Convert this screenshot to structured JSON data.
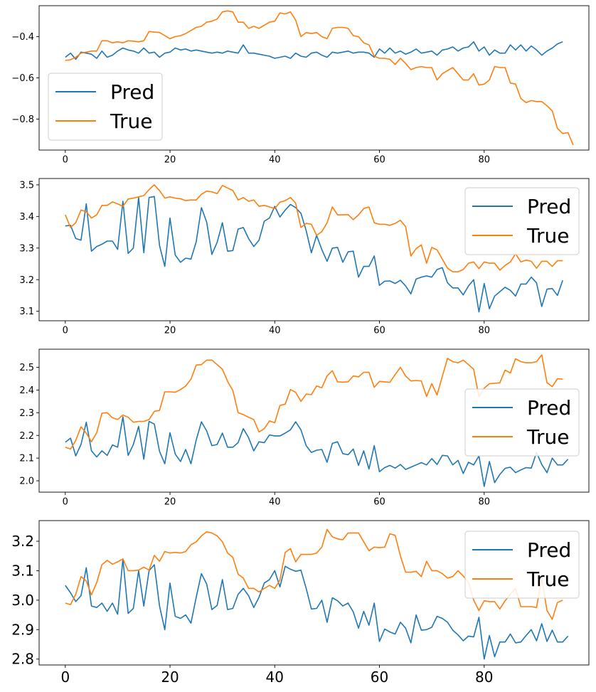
{
  "colors": {
    "pred": "#1f77b4",
    "true": "#ff7f0e",
    "axis": "#000000",
    "legend_border": "#cccccc"
  },
  "chart_data": [
    {
      "type": "line",
      "title": "",
      "xlabel": "",
      "ylabel": "",
      "xlim": [
        -5,
        100
      ],
      "ylim": [
        -0.95,
        -0.25
      ],
      "xticks": [
        0,
        20,
        40,
        60,
        80
      ],
      "xtick_labels": [
        "0",
        "20",
        "40",
        "60",
        "80"
      ],
      "yticks": [
        -0.8,
        -0.6,
        -0.4
      ],
      "ytick_labels": [
        "−0.8",
        "−0.6",
        "−0.4"
      ],
      "legend_position": "bottom-left",
      "series": [
        {
          "name": "Pred",
          "key": "pred",
          "values": [
            -0.5,
            -0.48,
            -0.51,
            -0.475,
            -0.48,
            -0.485,
            -0.505,
            -0.47,
            -0.5,
            -0.49,
            -0.47,
            -0.455,
            -0.465,
            -0.47,
            -0.48,
            -0.455,
            -0.48,
            -0.475,
            -0.5,
            -0.48,
            -0.475,
            -0.455,
            -0.465,
            -0.46,
            -0.47,
            -0.465,
            -0.47,
            -0.475,
            -0.48,
            -0.475,
            -0.48,
            -0.47,
            -0.475,
            -0.48,
            -0.44,
            -0.48,
            -0.48,
            -0.485,
            -0.49,
            -0.495,
            -0.505,
            -0.5,
            -0.495,
            -0.505,
            -0.48,
            -0.495,
            -0.5,
            -0.48,
            -0.475,
            -0.49,
            -0.5,
            -0.475,
            -0.48,
            -0.475,
            -0.47,
            -0.48,
            -0.475,
            -0.475,
            -0.48,
            -0.5,
            -0.46,
            -0.48,
            -0.455,
            -0.48,
            -0.47,
            -0.485,
            -0.475,
            -0.46,
            -0.48,
            -0.475,
            -0.47,
            -0.49,
            -0.465,
            -0.46,
            -0.45,
            -0.47,
            -0.455,
            -0.45,
            -0.425,
            -0.47,
            -0.45,
            -0.49,
            -0.465,
            -0.48,
            -0.48,
            -0.44,
            -0.465,
            -0.44,
            -0.47,
            -0.445,
            -0.465,
            -0.49,
            -0.47,
            -0.455,
            -0.435,
            -0.425
          ]
        },
        {
          "name": "True",
          "key": "true",
          "values": [
            -0.515,
            -0.512,
            -0.5,
            -0.48,
            -0.475,
            -0.47,
            -0.47,
            -0.42,
            -0.42,
            -0.43,
            -0.425,
            -0.43,
            -0.42,
            -0.422,
            -0.425,
            -0.42,
            -0.375,
            -0.378,
            -0.38,
            -0.395,
            -0.41,
            -0.4,
            -0.395,
            -0.385,
            -0.37,
            -0.355,
            -0.35,
            -0.33,
            -0.325,
            -0.315,
            -0.28,
            -0.275,
            -0.28,
            -0.33,
            -0.33,
            -0.36,
            -0.35,
            -0.36,
            -0.345,
            -0.33,
            -0.325,
            -0.285,
            -0.29,
            -0.28,
            -0.32,
            -0.4,
            -0.38,
            -0.385,
            -0.38,
            -0.4,
            -0.41,
            -0.36,
            -0.355,
            -0.355,
            -0.36,
            -0.395,
            -0.4,
            -0.43,
            -0.44,
            -0.495,
            -0.505,
            -0.505,
            -0.51,
            -0.535,
            -0.505,
            -0.53,
            -0.56,
            -0.55,
            -0.545,
            -0.55,
            -0.55,
            -0.61,
            -0.58,
            -0.565,
            -0.55,
            -0.58,
            -0.61,
            -0.61,
            -0.58,
            -0.635,
            -0.63,
            -0.61,
            -0.545,
            -0.55,
            -0.55,
            -0.625,
            -0.63,
            -0.7,
            -0.72,
            -0.71,
            -0.715,
            -0.715,
            -0.735,
            -0.76,
            -0.845,
            -0.87,
            -0.865,
            -0.925
          ]
        }
      ]
    },
    {
      "type": "line",
      "title": "",
      "xlabel": "",
      "ylabel": "",
      "xlim": [
        -5,
        100
      ],
      "ylim": [
        3.07,
        3.52
      ],
      "xticks": [
        0,
        20,
        40,
        60,
        80
      ],
      "xtick_labels": [
        "0",
        "20",
        "40",
        "60",
        "80"
      ],
      "yticks": [
        3.1,
        3.2,
        3.3,
        3.4,
        3.5
      ],
      "ytick_labels": [
        "3.1",
        "3.2",
        "3.3",
        "3.4",
        "3.5"
      ],
      "legend_position": "top-right",
      "series": [
        {
          "name": "Pred",
          "key": "pred",
          "values": [
            3.37,
            3.372,
            3.33,
            3.325,
            3.44,
            3.29,
            3.305,
            3.312,
            3.322,
            3.322,
            3.296,
            3.448,
            3.283,
            3.3,
            3.46,
            3.285,
            3.46,
            3.463,
            3.308,
            3.242,
            3.395,
            3.278,
            3.255,
            3.268,
            3.265,
            3.32,
            3.428,
            3.382,
            3.28,
            3.318,
            3.38,
            3.29,
            3.292,
            3.36,
            3.365,
            3.33,
            3.305,
            3.325,
            3.385,
            3.395,
            3.432,
            3.398,
            3.42,
            3.438,
            3.428,
            3.41,
            3.355,
            3.285,
            3.34,
            3.295,
            3.258,
            3.3,
            3.302,
            3.255,
            3.288,
            3.29,
            3.208,
            3.242,
            3.242,
            3.275,
            3.182,
            3.195,
            3.196,
            3.188,
            3.198,
            3.18,
            3.155,
            3.202,
            3.208,
            3.212,
            3.208,
            3.232,
            3.238,
            3.19,
            3.174,
            3.174,
            3.152,
            3.18,
            3.2,
            3.098,
            3.188,
            3.108,
            3.148,
            3.162,
            3.176,
            3.166,
            3.148,
            3.186,
            3.186,
            3.208,
            3.19,
            3.115,
            3.17,
            3.172,
            3.15,
            3.198
          ]
        },
        {
          "name": "True",
          "key": "true",
          "values": [
            3.405,
            3.365,
            3.38,
            3.42,
            3.415,
            3.395,
            3.405,
            3.435,
            3.435,
            3.446,
            3.44,
            3.432,
            3.455,
            3.458,
            3.462,
            3.466,
            3.485,
            3.5,
            3.482,
            3.458,
            3.462,
            3.458,
            3.456,
            3.45,
            3.452,
            3.452,
            3.47,
            3.48,
            3.478,
            3.472,
            3.498,
            3.49,
            3.482,
            3.452,
            3.46,
            3.448,
            3.452,
            3.432,
            3.435,
            3.43,
            3.425,
            3.445,
            3.45,
            3.46,
            3.442,
            3.365,
            3.378,
            3.375,
            3.34,
            3.352,
            3.38,
            3.43,
            3.405,
            3.405,
            3.406,
            3.39,
            3.405,
            3.425,
            3.43,
            3.38,
            3.375,
            3.375,
            3.372,
            3.378,
            3.388,
            3.368,
            3.275,
            3.298,
            3.31,
            3.252,
            3.302,
            3.294,
            3.265,
            3.236,
            3.225,
            3.225,
            3.232,
            3.252,
            3.256,
            3.235,
            3.256,
            3.252,
            3.252,
            3.23,
            3.245,
            3.256,
            3.282,
            3.256,
            3.262,
            3.258,
            3.236,
            3.258,
            3.258,
            3.242,
            3.26,
            3.26
          ]
        }
      ]
    },
    {
      "type": "line",
      "title": "",
      "xlabel": "",
      "ylabel": "",
      "xlim": [
        -5,
        100
      ],
      "ylim": [
        1.95,
        2.58
      ],
      "xticks": [
        0,
        20,
        40,
        60,
        80
      ],
      "xtick_labels": [
        "0",
        "20",
        "40",
        "60",
        "80"
      ],
      "yticks": [
        2.0,
        2.1,
        2.2,
        2.3,
        2.4,
        2.5
      ],
      "ytick_labels": [
        "2.0",
        "2.1",
        "2.2",
        "2.3",
        "2.4",
        "2.5"
      ],
      "legend_position": "center-right",
      "series": [
        {
          "name": "Pred",
          "key": "pred",
          "values": [
            2.17,
            2.188,
            2.11,
            2.16,
            2.258,
            2.132,
            2.105,
            2.132,
            2.112,
            2.158,
            2.148,
            2.282,
            2.112,
            2.16,
            2.24,
            2.095,
            2.262,
            2.25,
            2.13,
            2.075,
            2.212,
            2.118,
            2.085,
            2.138,
            2.075,
            2.18,
            2.26,
            2.22,
            2.155,
            2.16,
            2.21,
            2.148,
            2.148,
            2.168,
            2.23,
            2.19,
            2.132,
            2.172,
            2.168,
            2.202,
            2.198,
            2.198,
            2.21,
            2.225,
            2.26,
            2.225,
            2.155,
            2.125,
            2.135,
            2.138,
            2.082,
            2.165,
            2.172,
            2.12,
            2.115,
            2.14,
            2.068,
            2.132,
            2.052,
            2.155,
            2.04,
            2.058,
            2.068,
            2.056,
            2.072,
            2.05,
            2.06,
            2.07,
            2.08,
            2.07,
            2.098,
            2.072,
            2.112,
            2.11,
            2.07,
            2.09,
            2.032,
            2.082,
            2.07,
            2.11,
            1.975,
            2.085,
            1.992,
            2.028,
            2.055,
            2.06,
            2.036,
            2.048,
            2.058,
            2.056,
            2.125,
            2.072,
            2.036,
            2.1,
            2.07,
            2.07,
            2.095
          ]
        },
        {
          "name": "True",
          "key": "true",
          "values": [
            2.148,
            2.14,
            2.178,
            2.238,
            2.21,
            2.172,
            2.212,
            2.298,
            2.3,
            2.278,
            2.27,
            2.29,
            2.28,
            2.258,
            2.262,
            2.262,
            2.27,
            2.306,
            2.31,
            2.392,
            2.392,
            2.39,
            2.402,
            2.418,
            2.448,
            2.51,
            2.512,
            2.532,
            2.532,
            2.512,
            2.492,
            2.438,
            2.398,
            2.3,
            2.292,
            2.28,
            2.27,
            2.215,
            2.23,
            2.264,
            2.256,
            2.332,
            2.338,
            2.402,
            2.39,
            2.35,
            2.382,
            2.38,
            2.418,
            2.41,
            2.462,
            2.485,
            2.436,
            2.435,
            2.436,
            2.462,
            2.458,
            2.478,
            2.478,
            2.412,
            2.438,
            2.436,
            2.434,
            2.468,
            2.5,
            2.462,
            2.44,
            2.442,
            2.44,
            2.372,
            2.428,
            2.378,
            2.46,
            2.54,
            2.525,
            2.52,
            2.532,
            2.512,
            2.492,
            2.37,
            2.408,
            2.428,
            2.43,
            2.432,
            2.488,
            2.475,
            2.538,
            2.525,
            2.52,
            2.52,
            2.525,
            2.555,
            2.432,
            2.415,
            2.45,
            2.448
          ]
        }
      ]
    },
    {
      "type": "line",
      "title": "",
      "xlabel": "",
      "ylabel": "",
      "xlim": [
        -5,
        100
      ],
      "ylim": [
        2.78,
        3.27
      ],
      "xticks": [
        0,
        20,
        40,
        60,
        80
      ],
      "xtick_labels": [
        "0",
        "20",
        "40",
        "60",
        "80"
      ],
      "yticks": [
        2.8,
        2.9,
        3.0,
        3.1,
        3.2
      ],
      "ytick_labels": [
        "2.8",
        "2.9",
        "3.0",
        "3.1",
        "3.2"
      ],
      "legend_position": "top-right",
      "series": [
        {
          "name": "Pred",
          "key": "pred",
          "values": [
            3.05,
            3.025,
            2.995,
            3.015,
            3.11,
            2.98,
            2.975,
            2.99,
            2.962,
            2.99,
            2.952,
            3.14,
            2.955,
            2.972,
            3.1,
            2.98,
            3.1,
            3.12,
            2.98,
            2.9,
            3.058,
            2.945,
            2.938,
            2.95,
            2.922,
            3.01,
            3.09,
            3.055,
            2.968,
            2.982,
            3.07,
            2.968,
            2.972,
            3.02,
            3.04,
            3.015,
            2.975,
            3.01,
            3.058,
            3.07,
            3.1,
            3.045,
            3.115,
            3.105,
            3.098,
            3.102,
            3.04,
            2.97,
            2.972,
            3.0,
            2.925,
            3.008,
            2.998,
            2.98,
            2.99,
            2.96,
            2.905,
            2.962,
            2.915,
            2.99,
            2.86,
            2.902,
            2.892,
            2.885,
            2.925,
            2.905,
            2.855,
            2.95,
            2.898,
            2.9,
            2.908,
            2.945,
            2.938,
            2.925,
            2.898,
            2.882,
            2.862,
            2.878,
            2.875,
            2.942,
            2.8,
            2.88,
            2.808,
            2.858,
            2.858,
            2.885,
            2.855,
            2.858,
            2.88,
            2.9,
            2.862,
            2.92,
            2.86,
            2.898,
            2.858,
            2.858,
            2.878
          ]
        },
        {
          "name": "True",
          "key": "true",
          "values": [
            2.99,
            2.985,
            3.02,
            3.08,
            3.065,
            3.018,
            3.06,
            3.12,
            3.135,
            3.122,
            3.13,
            3.14,
            3.1,
            3.1,
            3.102,
            3.112,
            3.102,
            3.152,
            3.132,
            3.165,
            3.16,
            3.162,
            3.16,
            3.165,
            3.188,
            3.198,
            3.218,
            3.232,
            3.228,
            3.218,
            3.198,
            3.16,
            3.145,
            3.088,
            3.075,
            3.04,
            3.04,
            3.028,
            3.04,
            3.05,
            3.04,
            3.068,
            3.162,
            3.175,
            3.13,
            3.155,
            3.155,
            3.155,
            3.16,
            3.18,
            3.24,
            3.215,
            3.208,
            3.205,
            3.228,
            3.228,
            3.228,
            3.198,
            3.168,
            3.18,
            3.178,
            3.18,
            3.225,
            3.22,
            3.15,
            3.095,
            3.095,
            3.098,
            3.08,
            3.132,
            3.1,
            3.1,
            3.09,
            3.075,
            3.08,
            3.1,
            3.082,
            3.06,
            3.0,
            2.965,
            2.998,
            2.995,
            2.995,
            2.97,
            2.998,
            3.02,
            3.04,
            2.978,
            2.978,
            2.978,
            2.975,
            3.075,
            2.965,
            2.935,
            2.992,
            3.0
          ]
        }
      ]
    }
  ]
}
